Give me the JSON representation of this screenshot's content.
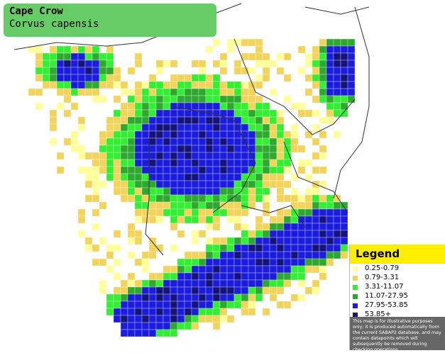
{
  "header": {
    "title": "Cape Crow",
    "subtitle": "Corvus capensis"
  },
  "legend": {
    "title": "Legend",
    "items": [
      {
        "label": "0.25-0.79",
        "color": "#ffff99"
      },
      {
        "label": "0.79-3.31",
        "color": "#f2d45c"
      },
      {
        "label": "3.31-11.07",
        "color": "#33ee33"
      },
      {
        "label": "11.07-27.95",
        "color": "#2fa82f"
      },
      {
        "label": "27.95-53.85",
        "color": "#1c1cdd"
      },
      {
        "label": "53.85+",
        "color": "#14147a"
      }
    ],
    "disclaimer": "This map is for illustrative purposes only; it is produced automatically from the current SABAP2 database, and may contain datapoints which will subsequently be removed during checking operations."
  }
}
